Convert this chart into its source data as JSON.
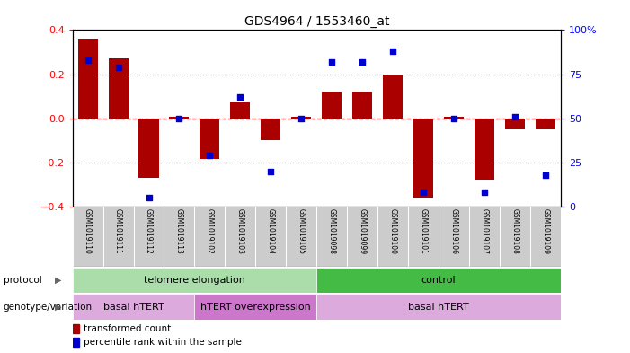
{
  "title": "GDS4964 / 1553460_at",
  "samples": [
    "GSM1019110",
    "GSM1019111",
    "GSM1019112",
    "GSM1019113",
    "GSM1019102",
    "GSM1019103",
    "GSM1019104",
    "GSM1019105",
    "GSM1019098",
    "GSM1019099",
    "GSM1019100",
    "GSM1019101",
    "GSM1019106",
    "GSM1019107",
    "GSM1019108",
    "GSM1019109"
  ],
  "transformed_count": [
    0.36,
    0.27,
    -0.27,
    0.005,
    -0.185,
    0.07,
    -0.1,
    0.005,
    0.12,
    0.12,
    0.2,
    -0.36,
    0.005,
    -0.28,
    -0.05,
    -0.05
  ],
  "percentile_rank": [
    83,
    79,
    5,
    50,
    29,
    62,
    20,
    50,
    82,
    82,
    88,
    8,
    50,
    8,
    51,
    18
  ],
  "ylim_left": [
    -0.4,
    0.4
  ],
  "ylim_right": [
    0,
    100
  ],
  "bar_color": "#aa0000",
  "point_color": "#0000cc",
  "zero_line_color": "#cc0000",
  "protocol_groups": [
    {
      "label": "telomere elongation",
      "start": 0,
      "end": 7,
      "color": "#aaddaa"
    },
    {
      "label": "control",
      "start": 8,
      "end": 15,
      "color": "#44bb44"
    }
  ],
  "genotype_groups": [
    {
      "label": "basal hTERT",
      "start": 0,
      "end": 3,
      "color": "#ddaadd"
    },
    {
      "label": "hTERT overexpression",
      "start": 4,
      "end": 7,
      "color": "#cc77cc"
    },
    {
      "label": "basal hTERT",
      "start": 8,
      "end": 15,
      "color": "#ddaadd"
    }
  ]
}
